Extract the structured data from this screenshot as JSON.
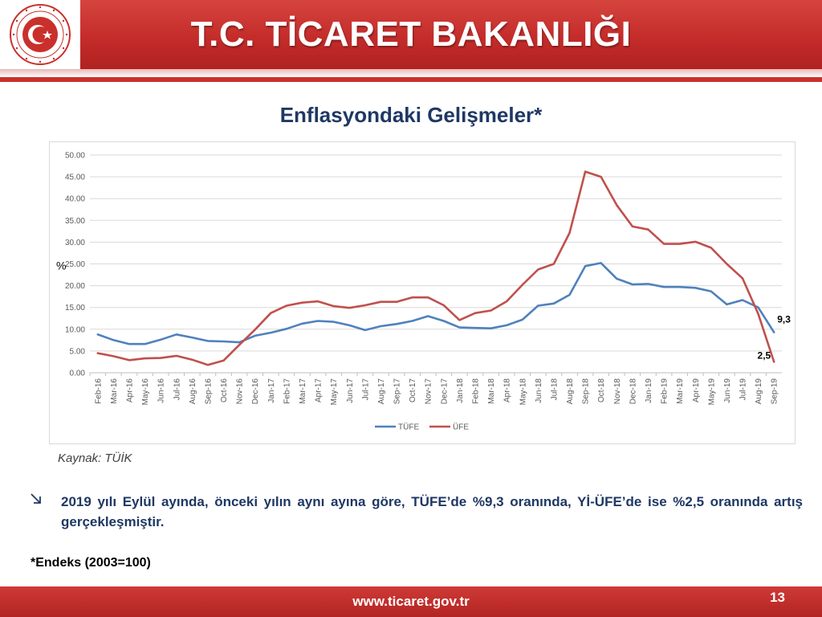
{
  "header": {
    "title": "T.C. TİCARET BAKANLIĞI"
  },
  "slide": {
    "title": "Enflasyondaki Gelişmeler*"
  },
  "chart_data": {
    "type": "line",
    "ylabel": "%",
    "ylim": [
      0,
      50
    ],
    "ytick_step": 5,
    "ytick_labels": [
      "0.00",
      "5.00",
      "10.00",
      "15.00",
      "20.00",
      "25.00",
      "30.00",
      "35.00",
      "40.00",
      "45.00",
      "50.00"
    ],
    "grid": true,
    "legend": "bottom",
    "categories": [
      "Feb-16",
      "Mar-16",
      "Apr-16",
      "May-16",
      "Jun-16",
      "Jul-16",
      "Aug-16",
      "Sep-16",
      "Oct-16",
      "Nov-16",
      "Dec-16",
      "Jan-17",
      "Feb-17",
      "Mar-17",
      "Apr-17",
      "May-17",
      "Jun-17",
      "Jul-17",
      "Aug-17",
      "Sep-17",
      "Oct-17",
      "Nov-17",
      "Dec-17",
      "Jan-18",
      "Feb-18",
      "Mar-18",
      "Apr-18",
      "May-18",
      "Jun-18",
      "Jul-18",
      "Aug-18",
      "Sep-18",
      "Oct-18",
      "Nov-18",
      "Dec-18",
      "Jan-19",
      "Feb-19",
      "Mar-19",
      "Apr-19",
      "May-19",
      "Jun-19",
      "Jul-19",
      "Aug-19",
      "Sep-19"
    ],
    "series": [
      {
        "name": "TÜFE",
        "color": "#4f81bd",
        "values": [
          8.8,
          7.5,
          6.6,
          6.6,
          7.6,
          8.8,
          8.1,
          7.3,
          7.2,
          7.0,
          8.5,
          9.2,
          10.1,
          11.3,
          11.9,
          11.7,
          10.9,
          9.8,
          10.7,
          11.2,
          11.9,
          13.0,
          11.9,
          10.4,
          10.3,
          10.2,
          10.9,
          12.2,
          15.4,
          15.9,
          17.9,
          24.5,
          25.2,
          21.6,
          20.3,
          20.4,
          19.7,
          19.7,
          19.5,
          18.7,
          15.7,
          16.7,
          15.0,
          9.3
        ]
      },
      {
        "name": "ÜFE",
        "color": "#c0504d",
        "values": [
          4.5,
          3.8,
          2.9,
          3.3,
          3.4,
          3.9,
          3.0,
          1.8,
          2.8,
          6.4,
          9.9,
          13.7,
          15.4,
          16.1,
          16.4,
          15.3,
          14.9,
          15.5,
          16.3,
          16.3,
          17.3,
          17.3,
          15.5,
          12.1,
          13.7,
          14.3,
          16.4,
          20.2,
          23.7,
          25.0,
          32.1,
          46.2,
          45.0,
          38.5,
          33.6,
          32.9,
          29.6,
          29.6,
          30.1,
          28.7,
          25.0,
          21.7,
          13.5,
          2.5
        ]
      }
    ],
    "end_labels": [
      {
        "series": "TÜFE",
        "text": "9,3"
      },
      {
        "series": "ÜFE",
        "text": "2,5"
      }
    ]
  },
  "source": {
    "text": "Kaynak: TÜİK"
  },
  "bullet": {
    "icon": "arrow-down-right-icon",
    "text": "2019 yılı Eylül ayında, önceki yılın aynı ayına göre, TÜFE’de %9,3 oranında, Yİ-ÜFE’de ise %2,5 oranında artış gerçekleşmiştir."
  },
  "footnote": {
    "text": "*Endeks (2003=100)"
  },
  "footer": {
    "url": "www.ticaret.gov.tr",
    "page_number": "13"
  }
}
